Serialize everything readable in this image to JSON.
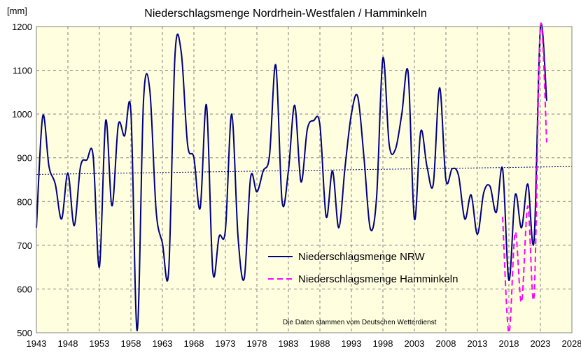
{
  "chart_data": {
    "type": "line",
    "title": "Niederschlagsmenge Nordrhein-Westfalen / Hamminkeln",
    "ylabel": "[mm]",
    "xlabel": "",
    "xlim": [
      1943,
      2028
    ],
    "ylim": [
      500,
      1200
    ],
    "x_ticks": [
      1943,
      1948,
      1953,
      1958,
      1963,
      1968,
      1973,
      1978,
      1983,
      1988,
      1993,
      1998,
      2003,
      2008,
      2013,
      2018,
      2023,
      2028
    ],
    "y_ticks": [
      500,
      600,
      700,
      800,
      900,
      1000,
      1100,
      1200
    ],
    "grid": true,
    "legend_position": "center-right",
    "annotation": "Die Daten stammen vom Deutschen Wetterdienst",
    "series": [
      {
        "name": "Niederschlagsmenge NRW",
        "color": "#000080",
        "style": "solid",
        "x": [
          1943,
          1944,
          1945,
          1946,
          1947,
          1948,
          1949,
          1950,
          1951,
          1952,
          1953,
          1954,
          1955,
          1956,
          1957,
          1958,
          1959,
          1960,
          1961,
          1962,
          1963,
          1964,
          1965,
          1966,
          1967,
          1968,
          1969,
          1970,
          1971,
          1972,
          1973,
          1974,
          1975,
          1976,
          1977,
          1978,
          1979,
          1980,
          1981,
          1982,
          1983,
          1984,
          1985,
          1986,
          1987,
          1988,
          1989,
          1990,
          1991,
          1992,
          1993,
          1994,
          1995,
          1996,
          1997,
          1998,
          1999,
          2000,
          2001,
          2002,
          2003,
          2004,
          2005,
          2006,
          2007,
          2008,
          2009,
          2010,
          2011,
          2012,
          2013,
          2014,
          2015,
          2016,
          2017,
          2018,
          2019,
          2020,
          2021,
          2022,
          2023,
          2024
        ],
        "y": [
          740,
          995,
          880,
          840,
          760,
          865,
          745,
          880,
          895,
          905,
          650,
          985,
          790,
          975,
          950,
          1005,
          505,
          1030,
          1055,
          780,
          705,
          642,
          1135,
          1140,
          930,
          900,
          785,
          1020,
          640,
          720,
          735,
          1000,
          720,
          625,
          855,
          822,
          870,
          905,
          1112,
          800,
          870,
          1020,
          845,
          965,
          985,
          975,
          765,
          870,
          740,
          880,
          1000,
          1040,
          900,
          738,
          810,
          1128,
          930,
          920,
          1000,
          1095,
          760,
          960,
          880,
          840,
          1060,
          850,
          875,
          860,
          760,
          815,
          725,
          820,
          835,
          775,
          875,
          620,
          815,
          740,
          840,
          712,
          1198,
          1030
        ]
      },
      {
        "name": "Niederschlagsmenge Hamminkeln",
        "color": "#ff00ff",
        "style": "dashed",
        "x": [
          2017,
          2018,
          2019,
          2020,
          2021,
          2022,
          2023,
          2024
        ],
        "y": [
          765,
          500,
          730,
          570,
          790,
          585,
          1200,
          935
        ]
      },
      {
        "name": "",
        "color": "#000080",
        "style": "dotted",
        "x": [
          1943,
          2028
        ],
        "y": [
          862,
          880
        ]
      }
    ]
  }
}
